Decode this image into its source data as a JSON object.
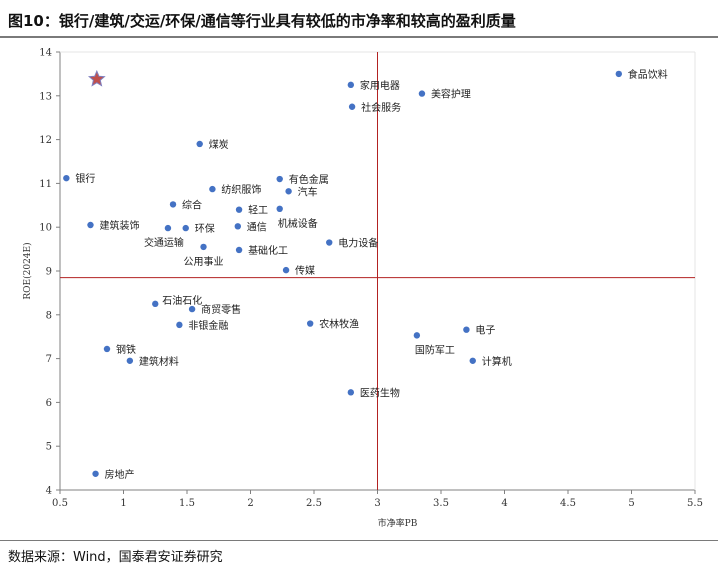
{
  "header": {
    "title": "图10：银行/建筑/交运/环保/通信等行业具有较低的市净率和较高的盈利质量"
  },
  "footer": {
    "source": "数据来源：Wind，国泰君安证券研究"
  },
  "colors": {
    "point": "#4472c4",
    "star": "#c0504d",
    "ref_line": "#b22222",
    "axis": "#808080"
  },
  "chart_data": {
    "type": "scatter",
    "title": "",
    "xlabel": "市净率PB",
    "ylabel": "ROE(2024E)",
    "xlim": [
      0.5,
      5.5
    ],
    "ylim": [
      4,
      14
    ],
    "xticks": [
      "0.5",
      "1",
      "1.5",
      "2",
      "2.5",
      "3",
      "3.5",
      "4",
      "4.5",
      "5",
      "5.5"
    ],
    "yticks": [
      "4",
      "5",
      "6",
      "7",
      "8",
      "9",
      "10",
      "11",
      "12",
      "13",
      "14"
    ],
    "reference_lines": {
      "x": 3.0,
      "y": 8.85
    },
    "highlight_marker": {
      "shape": "star",
      "x": 0.79,
      "y": 13.38
    },
    "points": [
      {
        "name": "食品饮料",
        "x": 4.9,
        "y": 13.5,
        "label_pos": "right"
      },
      {
        "name": "家用电器",
        "x": 2.79,
        "y": 13.25,
        "label_pos": "right"
      },
      {
        "name": "美容护理",
        "x": 3.35,
        "y": 13.05,
        "label_pos": "right"
      },
      {
        "name": "社会服务",
        "x": 2.8,
        "y": 12.75,
        "label_pos": "right"
      },
      {
        "name": "煤炭",
        "x": 1.6,
        "y": 11.9,
        "label_pos": "right"
      },
      {
        "name": "银行",
        "x": 0.55,
        "y": 11.12,
        "label_pos": "right"
      },
      {
        "name": "有色金属",
        "x": 2.23,
        "y": 11.1,
        "label_pos": "right"
      },
      {
        "name": "纺织服饰",
        "x": 1.7,
        "y": 10.87,
        "label_pos": "right"
      },
      {
        "name": "汽车",
        "x": 2.3,
        "y": 10.82,
        "label_pos": "right"
      },
      {
        "name": "综合",
        "x": 1.39,
        "y": 10.52,
        "label_pos": "right"
      },
      {
        "name": "轻工",
        "x": 1.91,
        "y": 10.4,
        "label_pos": "right"
      },
      {
        "name": "机械设备",
        "x": 2.23,
        "y": 10.42,
        "label_pos": "below-right"
      },
      {
        "name": "建筑装饰",
        "x": 0.74,
        "y": 10.05,
        "label_pos": "right"
      },
      {
        "name": "交通运输",
        "x": 1.35,
        "y": 9.98,
        "label_pos": "below-left"
      },
      {
        "name": "环保",
        "x": 1.49,
        "y": 9.98,
        "label_pos": "right"
      },
      {
        "name": "通信",
        "x": 1.9,
        "y": 10.02,
        "label_pos": "right"
      },
      {
        "name": "公用事业",
        "x": 1.63,
        "y": 9.55,
        "label_pos": "below"
      },
      {
        "name": "基础化工",
        "x": 1.91,
        "y": 9.48,
        "label_pos": "right"
      },
      {
        "name": "电力设备",
        "x": 2.62,
        "y": 9.65,
        "label_pos": "right"
      },
      {
        "name": "传媒",
        "x": 2.28,
        "y": 9.02,
        "label_pos": "right"
      },
      {
        "name": "石油石化",
        "x": 1.25,
        "y": 8.25,
        "label_pos": "right-up"
      },
      {
        "name": "商贸零售",
        "x": 1.54,
        "y": 8.13,
        "label_pos": "right"
      },
      {
        "name": "非银金融",
        "x": 1.44,
        "y": 7.77,
        "label_pos": "right"
      },
      {
        "name": "农林牧渔",
        "x": 2.47,
        "y": 7.8,
        "label_pos": "right"
      },
      {
        "name": "电子",
        "x": 3.7,
        "y": 7.66,
        "label_pos": "right"
      },
      {
        "name": "国防军工",
        "x": 3.31,
        "y": 7.53,
        "label_pos": "below-right"
      },
      {
        "name": "钢铁",
        "x": 0.87,
        "y": 7.22,
        "label_pos": "right"
      },
      {
        "name": "建筑材料",
        "x": 1.05,
        "y": 6.95,
        "label_pos": "right"
      },
      {
        "name": "计算机",
        "x": 3.75,
        "y": 6.95,
        "label_pos": "right"
      },
      {
        "name": "医药生物",
        "x": 2.79,
        "y": 6.23,
        "label_pos": "right"
      },
      {
        "name": "房地产",
        "x": 0.78,
        "y": 4.37,
        "label_pos": "right"
      }
    ]
  }
}
